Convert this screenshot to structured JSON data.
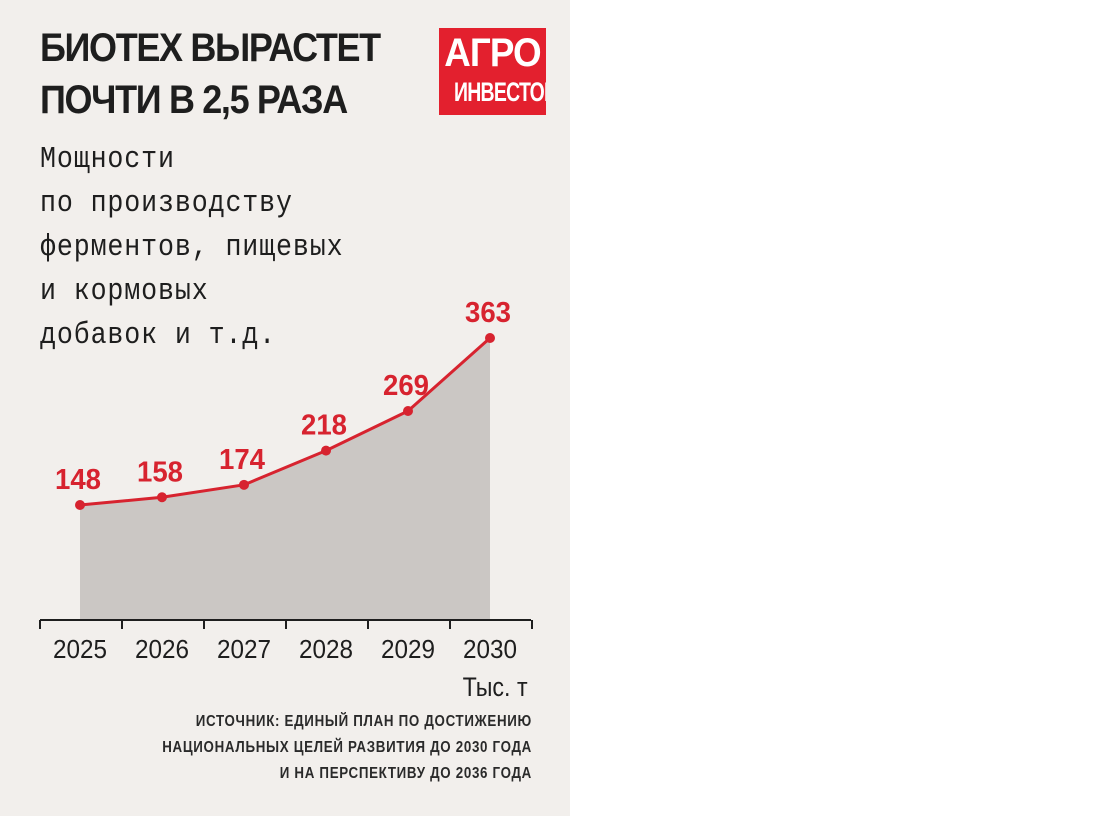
{
  "headline": {
    "line1": "БИОТЕХ ВЫРАСТЕТ",
    "line2": "ПОЧТИ В 2,5 РАЗА"
  },
  "logo": {
    "line1": "АГРО",
    "line2": "ИНВЕСТОР"
  },
  "subtitle": {
    "line1": "Мощности",
    "line2": "по производству",
    "line3": "ферментов, пищевых",
    "line4": "и кормовых",
    "line5": "добавок и т.д."
  },
  "unit": "Тыс. т",
  "source": {
    "line1": "ИСТОЧНИК: ЕДИНЫЙ ПЛАН ПО ДОСТИЖЕНИЮ",
    "line2": "НАЦИОНАЛЬНЫХ ЦЕЛЕЙ РАЗВИТИЯ ДО 2030 ГОДА",
    "line3": "И НА ПЕРСПЕКТИВУ ДО 2036 ГОДА"
  },
  "colors": {
    "accent": "#d7232f",
    "area": "#cbc7c4",
    "background": "#f2efec",
    "logo": "#e3202e",
    "text": "#1e1e1e"
  },
  "chart_data": {
    "type": "area",
    "categories": [
      "2025",
      "2026",
      "2027",
      "2028",
      "2029",
      "2030"
    ],
    "values": [
      148,
      158,
      174,
      218,
      269,
      363
    ],
    "data_labels": [
      "148",
      "158",
      "174",
      "218",
      "269",
      "363"
    ],
    "title": "",
    "xlabel": "",
    "ylabel": "",
    "ylim": [
      0,
      363
    ],
    "grid": false,
    "legend": "none"
  }
}
